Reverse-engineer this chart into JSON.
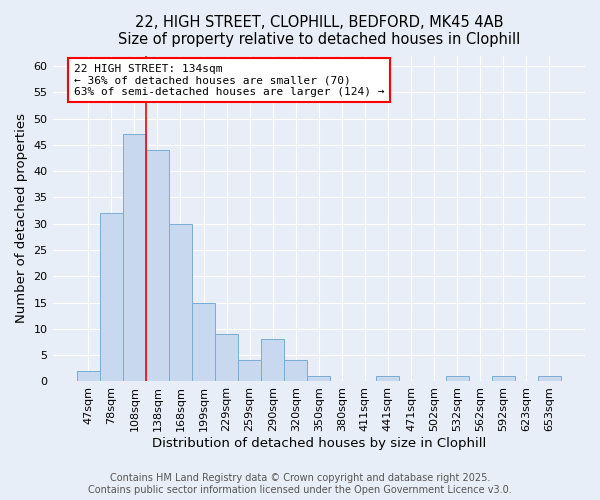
{
  "title_line1": "22, HIGH STREET, CLOPHILL, BEDFORD, MK45 4AB",
  "title_line2": "Size of property relative to detached houses in Clophill",
  "xlabel": "Distribution of detached houses by size in Clophill",
  "ylabel": "Number of detached properties",
  "categories": [
    "47sqm",
    "78sqm",
    "108sqm",
    "138sqm",
    "168sqm",
    "199sqm",
    "229sqm",
    "259sqm",
    "290sqm",
    "320sqm",
    "350sqm",
    "380sqm",
    "411sqm",
    "441sqm",
    "471sqm",
    "502sqm",
    "532sqm",
    "562sqm",
    "592sqm",
    "623sqm",
    "653sqm"
  ],
  "values": [
    2,
    32,
    47,
    44,
    30,
    15,
    9,
    4,
    8,
    4,
    1,
    0,
    0,
    1,
    0,
    0,
    1,
    0,
    1,
    0,
    1
  ],
  "bar_color": "#c8d8ee",
  "bar_edge_color": "#7aadd4",
  "background_color": "#e8eef7",
  "red_line_x": 2.5,
  "annotation_text": "22 HIGH STREET: 134sqm\n← 36% of detached houses are smaller (70)\n63% of semi-detached houses are larger (124) →",
  "annotation_box_facecolor": "white",
  "annotation_box_edgecolor": "red",
  "ylim": [
    0,
    62
  ],
  "yticks": [
    0,
    5,
    10,
    15,
    20,
    25,
    30,
    35,
    40,
    45,
    50,
    55,
    60
  ],
  "footer_text": "Contains HM Land Registry data © Crown copyright and database right 2025.\nContains public sector information licensed under the Open Government Licence v3.0.",
  "title_fontsize": 10.5,
  "axis_label_fontsize": 9.5,
  "tick_fontsize": 8,
  "annotation_fontsize": 8,
  "footer_fontsize": 7
}
